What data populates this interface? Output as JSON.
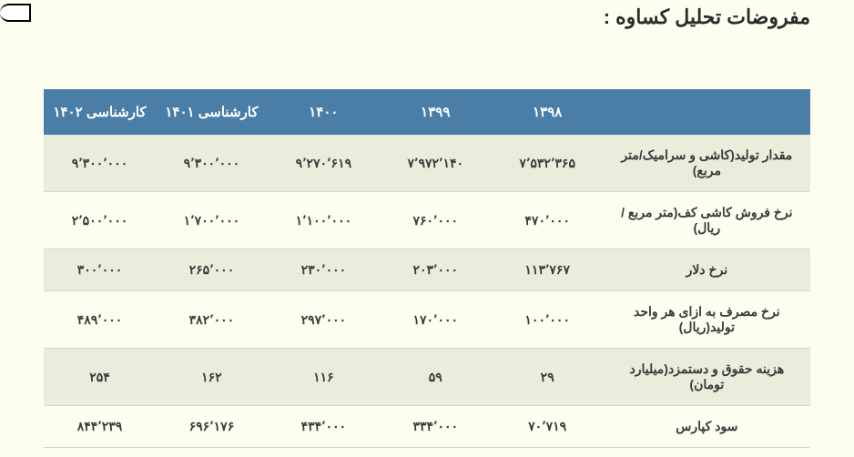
{
  "title": "مفروضات تحلیل کساوه :",
  "table": {
    "columns": [
      "",
      "۱۳۹۸",
      "۱۳۹۹",
      "۱۴۰۰",
      "کارشناسی ۱۴۰۱",
      "کارشناسی ۱۴۰۲"
    ],
    "rows": [
      {
        "label": "مقدار تولید(کاشی و سرامیک/متر مربع)",
        "v": [
          "۷٬۵۳۲٬۳۶۵",
          "۷٬۹۷۲٬۱۴۰",
          "۹٬۲۷۰٬۶۱۹",
          "۹٬۳۰۰٬۰۰۰",
          "۹٬۳۰۰٬۰۰۰"
        ]
      },
      {
        "label": "نرخ فروش کاشی کف(متر مربع /ریال)",
        "v": [
          "۴۷۰٬۰۰۰",
          "۷۶۰٬۰۰۰",
          "۱٬۱۰۰٬۰۰۰",
          "۱٬۷۰۰٬۰۰۰",
          "۲٬۵۰۰٬۰۰۰"
        ]
      },
      {
        "label": "نرخ دلار",
        "v": [
          "۱۱۳٬۷۶۷",
          "۲۰۳٬۰۰۰",
          "۲۳۰٬۰۰۰",
          "۲۶۵٬۰۰۰",
          "۳۰۰٬۰۰۰"
        ]
      },
      {
        "label": "نرخ مصرف به ازای هر واحد تولید(ریال)",
        "v": [
          "۱۰۰٬۰۰۰",
          "۱۷۰٬۰۰۰",
          "۲۹۷٬۰۰۰",
          "۳۸۲٬۰۰۰",
          "۴۸۹٬۰۰۰"
        ]
      },
      {
        "label": "هزینه حقوق و دستمزد(میلیارد تومان)",
        "v": [
          "۲۹",
          "۵۹",
          "۱۱۶",
          "۱۶۲",
          "۲۵۴"
        ]
      },
      {
        "label": "سود کپارس",
        "v": [
          "۷۰٬۷۱۹",
          "۳۳۴٬۰۰۰",
          "۴۳۴٬۰۰۰",
          "۶۹۶٬۱۷۶",
          "۸۴۴٬۲۳۹"
        ]
      }
    ],
    "header_bg": "#4a7ea6",
    "header_fg": "#ffffff",
    "row_odd_bg": "#ececdd",
    "row_even_bg": "#fdfdf0",
    "border_color": "#d8d8c8",
    "font_size_header": 15,
    "font_size_cell": 14
  },
  "page_bg": "#fdfdf0"
}
